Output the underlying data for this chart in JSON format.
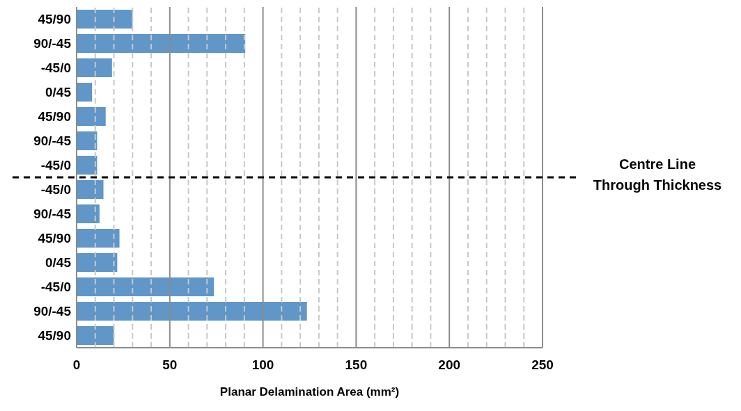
{
  "chart_data": {
    "type": "bar",
    "orientation": "horizontal",
    "categories": [
      "45/90",
      "90/-45",
      "-45/0",
      "0/45",
      "45/90",
      "90/-45",
      "-45/0",
      "-45/0",
      "90/-45",
      "45/90",
      "0/45",
      "-45/0",
      "90/-45",
      "45/90"
    ],
    "values": [
      30,
      90.5,
      19,
      8.3,
      15.6,
      11,
      11,
      14.4,
      12.3,
      23,
      21.8,
      73.7,
      123.6,
      20
    ],
    "color": "#6096c8",
    "xlabel": "Planar Delamination Area (mm²)",
    "xlim": [
      0,
      250
    ],
    "xticks": [
      0,
      {
        "value": 10,
        "label": null
      },
      {
        "value": 20,
        "label": null
      },
      {
        "value": 30,
        "label": null
      },
      {
        "value": 40,
        "label": null
      },
      50,
      {
        "value": 60,
        "label": null
      },
      {
        "value": 70,
        "label": null
      },
      {
        "value": 80,
        "label": null
      },
      {
        "value": 90,
        "label": null
      },
      100,
      {
        "value": 110,
        "label": null
      },
      {
        "value": 120,
        "label": null
      },
      {
        "value": 130,
        "label": null
      },
      {
        "value": 140,
        "label": null
      },
      150,
      {
        "value": 160,
        "label": null
      },
      {
        "value": 170,
        "label": null
      },
      {
        "value": 180,
        "label": null
      },
      {
        "value": 190,
        "label": null
      },
      200,
      {
        "value": 210,
        "label": null
      },
      {
        "value": 220,
        "label": null
      },
      {
        "value": 230,
        "label": null
      },
      {
        "value": 240,
        "label": null
      },
      250
    ],
    "grid": "x",
    "annotations": [
      "Centre Line Through Thickness"
    ]
  }
}
